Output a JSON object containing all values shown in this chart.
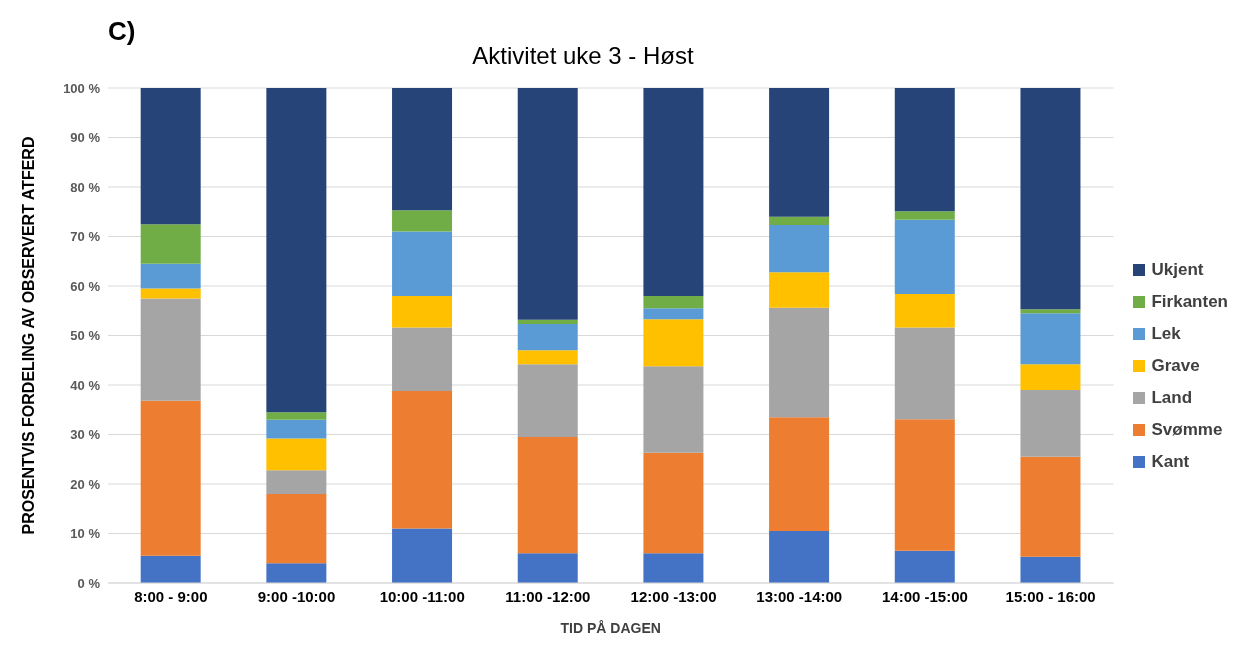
{
  "chart_data": {
    "type": "bar",
    "stacked": true,
    "title": "Aktivitet uke 3 - Høst",
    "annotations": [
      "C)"
    ],
    "xlabel": "TID PÅ DAGEN",
    "ylabel": "PROSENTVIS FORDELING AV OBSERVERT ATFERD",
    "categories": [
      "8:00 - 9:00",
      "9:00 -10:00",
      "10:00 -11:00",
      "11:00 -12:00",
      "12:00 -13:00",
      "13:00 -14:00",
      "14:00 -15:00",
      "15:00 - 16:00"
    ],
    "series": [
      {
        "name": "Kant",
        "color": "#4472c4",
        "values": [
          5.5,
          4.0,
          11.0,
          6.0,
          6.0,
          10.5,
          6.5,
          5.3
        ]
      },
      {
        "name": "Svømme",
        "color": "#ed7d31",
        "values": [
          31.3,
          14.0,
          27.8,
          23.5,
          20.3,
          23.0,
          26.6,
          20.2
        ]
      },
      {
        "name": "Land",
        "color": "#a5a5a5",
        "values": [
          20.7,
          4.8,
          12.8,
          14.7,
          17.5,
          22.1,
          18.5,
          13.5
        ]
      },
      {
        "name": "Grave",
        "color": "#ffc000",
        "values": [
          2.0,
          6.4,
          6.4,
          2.8,
          9.5,
          7.2,
          6.8,
          5.2
        ]
      },
      {
        "name": "Lek",
        "color": "#5b9bd5",
        "values": [
          5.0,
          3.8,
          13.0,
          5.3,
          2.2,
          9.5,
          15.0,
          10.3
        ]
      },
      {
        "name": "Firkanten",
        "color": "#70ad47",
        "values": [
          8.0,
          1.5,
          4.3,
          0.9,
          2.5,
          1.7,
          1.7,
          0.8
        ]
      },
      {
        "name": "Ukjent",
        "color": "#264478",
        "values": [
          27.5,
          65.5,
          24.7,
          46.8,
          42.0,
          26.0,
          24.9,
          44.7
        ]
      }
    ],
    "ylim": [
      0,
      100
    ],
    "yticks": [
      {
        "value": 0,
        "label": "0 %"
      },
      {
        "value": 10,
        "label": "10 %"
      },
      {
        "value": 20,
        "label": "20 %"
      },
      {
        "value": 30,
        "label": "30 %"
      },
      {
        "value": 40,
        "label": "40 %"
      },
      {
        "value": 50,
        "label": "50 %"
      },
      {
        "value": 60,
        "label": "60 %"
      },
      {
        "value": 70,
        "label": "70 %"
      },
      {
        "value": 80,
        "label": "80 %"
      },
      {
        "value": 90,
        "label": "90 %"
      },
      {
        "value": 100,
        "label": "100 %"
      }
    ],
    "grid": "y",
    "legend": "right"
  }
}
